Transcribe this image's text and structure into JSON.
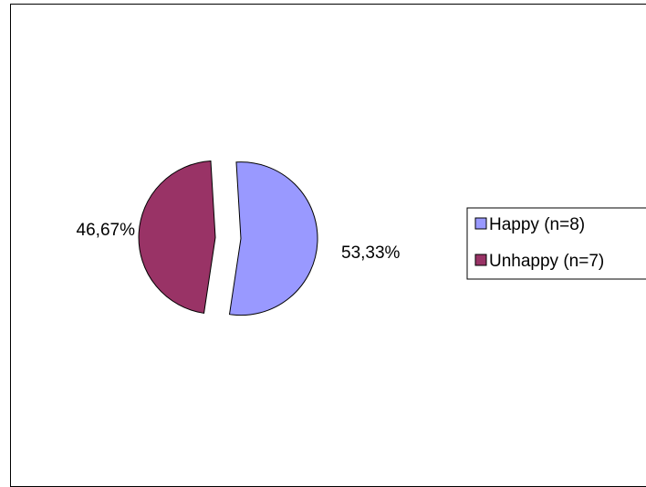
{
  "chart_data": {
    "type": "pie",
    "slices": [
      {
        "label": "Happy  (n=8)",
        "value": 53.33,
        "display": "53,33%",
        "color": "#9999ff"
      },
      {
        "label": "Unhappy  (n=7)",
        "value": 46.67,
        "display": "46,67%",
        "color": "#993366"
      }
    ],
    "legend_position": "right",
    "exploded": true
  }
}
